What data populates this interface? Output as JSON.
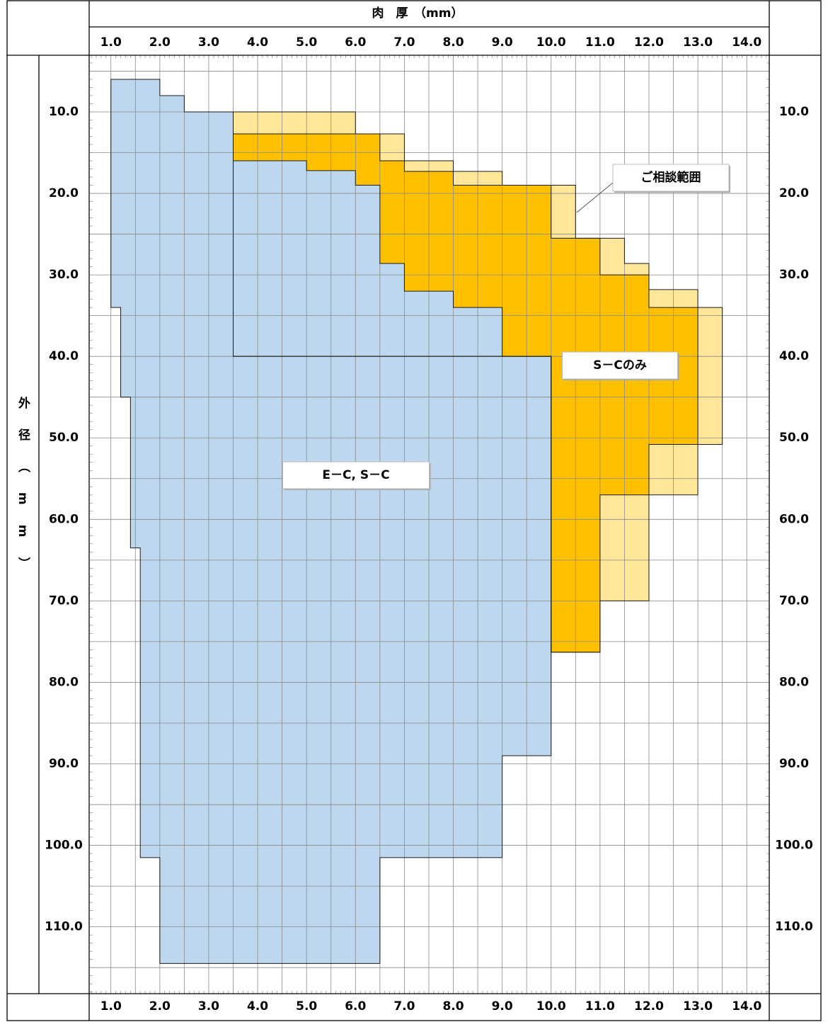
{
  "chart_data": {
    "type": "region",
    "title": "肉　厚　（mm）",
    "y_label": "外径（mm）",
    "xlim": [
      0.57,
      14.46
    ],
    "ylim": [
      3.05,
      118.2
    ],
    "y_inverted": true,
    "grid": true,
    "xticks": [
      {
        "value": 1,
        "label": "1.0"
      },
      {
        "value": 2,
        "label": "2.0"
      },
      {
        "value": 3,
        "label": "3.0"
      },
      {
        "value": 4,
        "label": "4.0"
      },
      {
        "value": 5,
        "label": "5.0"
      },
      {
        "value": 6,
        "label": "6.0"
      },
      {
        "value": 7,
        "label": "7.0"
      },
      {
        "value": 8,
        "label": "8.0"
      },
      {
        "value": 9,
        "label": "9.0"
      },
      {
        "value": 10,
        "label": "10.0"
      },
      {
        "value": 11,
        "label": "11.0"
      },
      {
        "value": 12,
        "label": "12.0"
      },
      {
        "value": 13,
        "label": "13.0"
      },
      {
        "value": 14,
        "label": "14.0"
      }
    ],
    "yticks": [
      {
        "value": 10,
        "label": "10.0"
      },
      {
        "value": 20,
        "label": "20.0"
      },
      {
        "value": 30,
        "label": "30.0"
      },
      {
        "value": 40,
        "label": "40.0"
      },
      {
        "value": 50,
        "label": "50.0"
      },
      {
        "value": 60,
        "label": "60.0"
      },
      {
        "value": 70,
        "label": "70.0"
      },
      {
        "value": 80,
        "label": "80.0"
      },
      {
        "value": 90,
        "label": "90.0"
      },
      {
        "value": 100,
        "label": "100.0"
      },
      {
        "value": 110,
        "label": "110.0"
      }
    ],
    "series": [
      {
        "name": "ご相談範囲",
        "color": "#FFE699",
        "x": [
          3.5,
          6.0,
          6.0,
          7.0,
          7.0,
          8.0,
          8.0,
          9.0,
          9.0,
          10.5,
          10.5,
          11.5,
          11.5,
          12.0,
          12.0,
          13.0,
          13.0,
          13.5,
          13.5,
          13.0,
          13.0,
          12.0,
          12.0,
          11.0,
          11.0,
          10.0,
          10.0,
          3.5
        ],
        "y": [
          10,
          10,
          12.7,
          12.7,
          16,
          16,
          17.3,
          17.3,
          19,
          19,
          25.5,
          25.5,
          28.6,
          28.6,
          31.8,
          31.8,
          34,
          34,
          50.8,
          50.8,
          57,
          57,
          70,
          70,
          76.3,
          76.3,
          40,
          40
        ]
      },
      {
        "name": "S－Cのみ",
        "color": "#FFC000",
        "x": [
          3.5,
          6.5,
          6.5,
          7.0,
          7.0,
          8.0,
          8.0,
          10.0,
          10.0,
          11.0,
          11.0,
          12.0,
          12.0,
          13.0,
          13.0,
          12.0,
          12.0,
          11.0,
          11.0,
          10.0,
          10.0,
          3.5
        ],
        "y": [
          12.7,
          12.7,
          16,
          16,
          17.3,
          17.3,
          19,
          19,
          25.5,
          25.5,
          30,
          30,
          34,
          34,
          50.8,
          50.8,
          57,
          57,
          76.3,
          76.3,
          40,
          40
        ]
      },
      {
        "name": "E－C, S－C",
        "color": "#BDD7EE",
        "x": [
          1.0,
          2.0,
          2.0,
          2.5,
          2.5,
          3.5,
          3.5,
          5.0,
          5.0,
          6.0,
          6.0,
          6.5,
          6.5,
          7.0,
          7.0,
          8.0,
          8.0,
          9.0,
          9.0,
          10.0,
          10.0,
          9.0,
          9.0,
          6.5,
          6.5,
          2.0,
          2.0,
          1.6,
          1.6,
          1.4,
          1.4,
          1.2,
          1.2,
          1.0
        ],
        "y": [
          6,
          6,
          8,
          8,
          10,
          10,
          16,
          16,
          17.2,
          17.2,
          19,
          19,
          28.6,
          28.6,
          32,
          32,
          34,
          34,
          40,
          40,
          89,
          89,
          101.5,
          101.5,
          114.5,
          114.5,
          101.5,
          101.5,
          63.5,
          63.5,
          45,
          45,
          34,
          34
        ]
      }
    ]
  }
}
